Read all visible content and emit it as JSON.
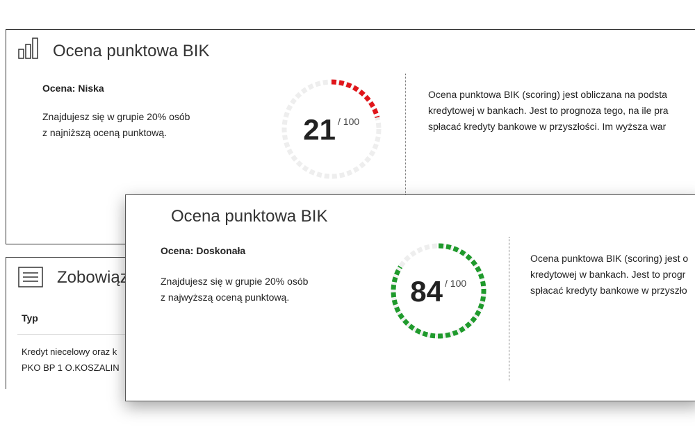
{
  "cards": [
    {
      "title": "Ocena punktowa BIK",
      "rating": "Ocena: Niska",
      "description": [
        "Znajdujesz się w grupie 20% osób",
        "z najniższą oceną punktową."
      ],
      "score": 21,
      "max": {
        "value": 100,
        "label": "/ 100"
      },
      "color": "#e0161b",
      "info": [
        "Ocena punktowa BIK (scoring) jest obliczana na podsta",
        "kredytowej w bankach. Jest to prognoza tego, na ile pra",
        "spłacać kredyty bankowe w przyszłości. Im wyższa war"
      ]
    },
    {
      "title": "Ocena punktowa BIK",
      "rating": "Ocena: Doskonała",
      "description": [
        "Znajdujesz się w grupie 20% osób",
        "z najwyższą oceną punktową."
      ],
      "score": 84,
      "max": {
        "value": 100,
        "label": "/ 100"
      },
      "color": "#1f9a2c",
      "info": [
        "Ocena punktowa BIK (scoring) jest o",
        "kredytowej w bankach. Jest to progr",
        "spłacać kredyty bankowe w przyszło"
      ]
    }
  ],
  "obligations": {
    "title": "Zobowiąza",
    "column": "Typ",
    "rows": [
      "Kredyt niecelowy oraz k",
      "PKO BP 1 O.KOSZALIN"
    ]
  }
}
